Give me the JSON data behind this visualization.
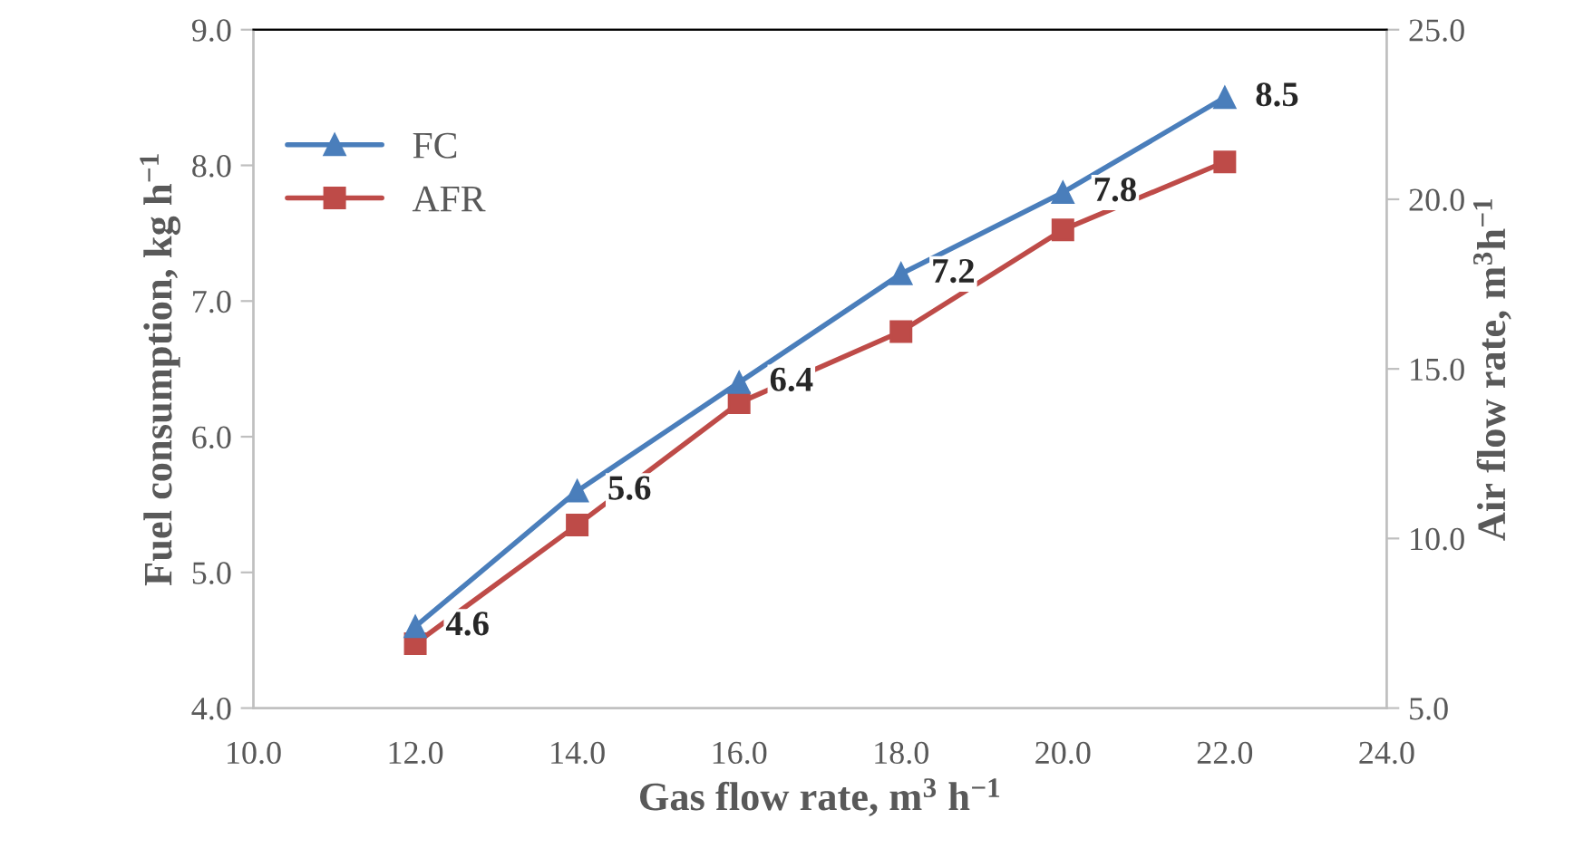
{
  "chart_data": {
    "type": "line",
    "xlabel": "Gas flow rate, m$^{3}$ h$^{−1}$",
    "ylabel": "Fuel consumption, kg h$^{−1}$",
    "y2label": "Air flow rate, m$^{3}$h$^{−1}$",
    "x": [
      12,
      14,
      16,
      18,
      20,
      22
    ],
    "series": [
      {
        "name": "FC",
        "color": "#4a7ebb",
        "marker": "triangle",
        "values": [
          4.6,
          5.6,
          6.4,
          7.2,
          7.8,
          8.5
        ],
        "value_labels": [
          "4.6",
          "5.6",
          "6.4",
          "7.2",
          "7.8",
          "8.5"
        ]
      },
      {
        "name": "AFR",
        "color": "#be4b48",
        "marker": "square",
        "axis": "y2",
        "values": [
          6.9,
          10.4,
          14.0,
          16.1,
          19.1,
          21.1
        ]
      }
    ],
    "xlim": [
      10,
      24
    ],
    "xticks": [
      {
        "value": 10,
        "label": "10.0"
      },
      {
        "value": 12,
        "label": "12.0"
      },
      {
        "value": 14,
        "label": "14.0"
      },
      {
        "value": 16,
        "label": "16.0"
      },
      {
        "value": 18,
        "label": "18.0"
      },
      {
        "value": 20,
        "label": "20.0"
      },
      {
        "value": 22,
        "label": "22.0"
      },
      {
        "value": 24,
        "label": "24.0"
      }
    ],
    "ylim": [
      4,
      9
    ],
    "yticks": [
      {
        "value": 4,
        "label": "4.0"
      },
      {
        "value": 5,
        "label": "5.0"
      },
      {
        "value": 6,
        "label": "6.0"
      },
      {
        "value": 7,
        "label": "7.0"
      },
      {
        "value": 8,
        "label": "8.0"
      },
      {
        "value": 9,
        "label": "9.0"
      }
    ],
    "y2lim": [
      5,
      25
    ],
    "y2ticks": [
      {
        "value": 5,
        "label": "5.0"
      },
      {
        "value": 10,
        "label": "10.0"
      },
      {
        "value": 15,
        "label": "15.0"
      },
      {
        "value": 20,
        "label": "20.0"
      },
      {
        "value": 25,
        "label": "25.0"
      }
    ],
    "grid": false,
    "legend": "top left",
    "line_style": "solid"
  }
}
